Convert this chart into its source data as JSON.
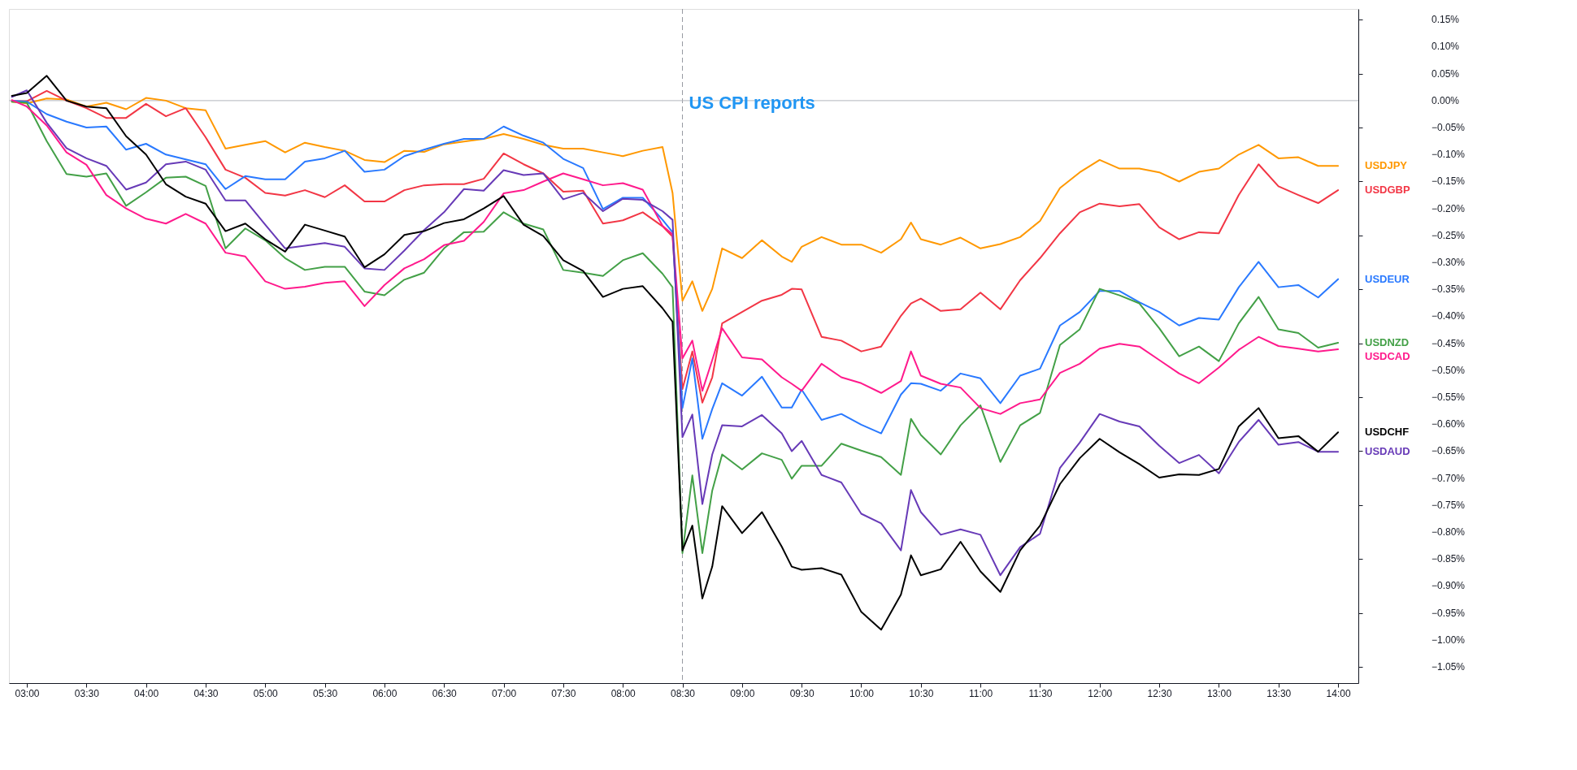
{
  "chart_data": {
    "type": "line",
    "x": [
      2.875,
      3,
      3.167,
      3.333,
      3.5,
      3.667,
      3.833,
      4,
      4.167,
      4.333,
      4.5,
      4.667,
      4.833,
      5,
      5.167,
      5.333,
      5.5,
      5.667,
      5.833,
      6,
      6.167,
      6.333,
      6.5,
      6.667,
      6.833,
      7,
      7.167,
      7.333,
      7.5,
      7.667,
      7.833,
      8,
      8.167,
      8.333,
      8.417,
      8.5,
      8.583,
      8.667,
      8.75,
      8.833,
      9,
      9.167,
      9.333,
      9.417,
      9.5,
      9.667,
      9.833,
      10,
      10.167,
      10.333,
      10.417,
      10.5,
      10.667,
      10.833,
      11,
      11.167,
      11.333,
      11.5,
      11.667,
      11.833,
      12,
      12.167,
      12.333,
      12.5,
      12.667,
      12.833,
      13,
      13.167,
      13.333,
      13.5,
      13.667,
      13.833,
      14
    ],
    "series": [
      {
        "name": "USDJPY",
        "color": "#ff9800",
        "values": [
          -0.002,
          -0.005,
          0.004,
          0.002,
          -0.011,
          -0.004,
          -0.016,
          0.005,
          0,
          -0.014,
          -0.018,
          -0.089,
          -0.082,
          -0.075,
          -0.096,
          -0.078,
          -0.086,
          -0.093,
          -0.11,
          -0.114,
          -0.093,
          -0.095,
          -0.081,
          -0.076,
          -0.071,
          -0.062,
          -0.071,
          -0.082,
          -0.089,
          -0.089,
          -0.096,
          -0.103,
          -0.093,
          -0.086,
          -0.171,
          -0.371,
          -0.335,
          -0.39,
          -0.349,
          -0.274,
          -0.292,
          -0.259,
          -0.289,
          -0.299,
          -0.271,
          -0.253,
          -0.267,
          -0.267,
          -0.282,
          -0.257,
          -0.226,
          -0.257,
          -0.267,
          -0.254,
          -0.274,
          -0.266,
          -0.253,
          -0.223,
          -0.162,
          -0.133,
          -0.11,
          -0.126,
          -0.126,
          -0.133,
          -0.15,
          -0.132,
          -0.126,
          -0.1,
          -0.082,
          -0.107,
          -0.105,
          -0.121,
          -0.121
        ]
      },
      {
        "name": "USDGBP",
        "color": "#f23645",
        "values": [
          -0.001,
          -0.001,
          0.018,
          0,
          -0.014,
          -0.032,
          -0.032,
          -0.006,
          -0.029,
          -0.014,
          -0.068,
          -0.128,
          -0.143,
          -0.171,
          -0.176,
          -0.166,
          -0.179,
          -0.157,
          -0.187,
          -0.187,
          -0.166,
          -0.157,
          -0.155,
          -0.155,
          -0.145,
          -0.098,
          -0.118,
          -0.135,
          -0.169,
          -0.167,
          -0.228,
          -0.222,
          -0.207,
          -0.233,
          -0.252,
          -0.535,
          -0.465,
          -0.56,
          -0.513,
          -0.413,
          -0.392,
          -0.371,
          -0.36,
          -0.349,
          -0.35,
          -0.438,
          -0.445,
          -0.465,
          -0.456,
          -0.399,
          -0.376,
          -0.367,
          -0.39,
          -0.387,
          -0.356,
          -0.387,
          -0.333,
          -0.292,
          -0.246,
          -0.207,
          -0.191,
          -0.196,
          -0.192,
          -0.235,
          -0.257,
          -0.244,
          -0.246,
          -0.175,
          -0.118,
          -0.159,
          -0.175,
          -0.19,
          -0.166
        ]
      },
      {
        "name": "USDEUR",
        "color": "#2979ff",
        "values": [
          0,
          -0.002,
          -0.025,
          -0.039,
          -0.05,
          -0.048,
          -0.091,
          -0.08,
          -0.1,
          -0.109,
          -0.118,
          -0.164,
          -0.14,
          -0.146,
          -0.146,
          -0.113,
          -0.107,
          -0.093,
          -0.132,
          -0.128,
          -0.103,
          -0.091,
          -0.08,
          -0.071,
          -0.071,
          -0.048,
          -0.065,
          -0.078,
          -0.108,
          -0.125,
          -0.201,
          -0.18,
          -0.18,
          -0.221,
          -0.244,
          -0.57,
          -0.478,
          -0.627,
          -0.572,
          -0.524,
          -0.547,
          -0.512,
          -0.569,
          -0.569,
          -0.536,
          -0.592,
          -0.581,
          -0.601,
          -0.617,
          -0.545,
          -0.524,
          -0.525,
          -0.538,
          -0.506,
          -0.515,
          -0.561,
          -0.51,
          -0.497,
          -0.417,
          -0.392,
          -0.353,
          -0.353,
          -0.374,
          -0.392,
          -0.417,
          -0.403,
          -0.406,
          -0.346,
          -0.299,
          -0.346,
          -0.342,
          -0.365,
          -0.331
        ]
      },
      {
        "name": "USDNZD",
        "color": "#43a047",
        "values": [
          -0.002,
          -0.004,
          -0.075,
          -0.136,
          -0.141,
          -0.135,
          -0.195,
          -0.17,
          -0.143,
          -0.141,
          -0.158,
          -0.274,
          -0.237,
          -0.259,
          -0.292,
          -0.314,
          -0.308,
          -0.308,
          -0.354,
          -0.361,
          -0.332,
          -0.319,
          -0.274,
          -0.244,
          -0.243,
          -0.207,
          -0.228,
          -0.239,
          -0.314,
          -0.319,
          -0.325,
          -0.296,
          -0.283,
          -0.321,
          -0.346,
          -0.839,
          -0.695,
          -0.839,
          -0.723,
          -0.656,
          -0.684,
          -0.654,
          -0.666,
          -0.701,
          -0.677,
          -0.677,
          -0.636,
          -0.649,
          -0.661,
          -0.694,
          -0.59,
          -0.62,
          -0.656,
          -0.602,
          -0.565,
          -0.67,
          -0.602,
          -0.579,
          -0.453,
          -0.424,
          -0.349,
          -0.361,
          -0.376,
          -0.422,
          -0.474,
          -0.456,
          -0.483,
          -0.413,
          -0.364,
          -0.424,
          -0.431,
          -0.458,
          -0.449
        ]
      },
      {
        "name": "USDCAD",
        "color": "#ff1a8c",
        "values": [
          0.001,
          -0.011,
          -0.046,
          -0.096,
          -0.119,
          -0.175,
          -0.2,
          -0.219,
          -0.228,
          -0.21,
          -0.228,
          -0.282,
          -0.289,
          -0.335,
          -0.349,
          -0.345,
          -0.338,
          -0.335,
          -0.381,
          -0.342,
          -0.311,
          -0.294,
          -0.268,
          -0.26,
          -0.225,
          -0.172,
          -0.166,
          -0.15,
          -0.135,
          -0.146,
          -0.157,
          -0.153,
          -0.165,
          -0.232,
          -0.248,
          -0.478,
          -0.445,
          -0.538,
          -0.481,
          -0.422,
          -0.476,
          -0.48,
          -0.513,
          -0.525,
          -0.538,
          -0.488,
          -0.513,
          -0.524,
          -0.542,
          -0.52,
          -0.465,
          -0.51,
          -0.525,
          -0.532,
          -0.57,
          -0.581,
          -0.561,
          -0.554,
          -0.505,
          -0.488,
          -0.46,
          -0.451,
          -0.456,
          -0.481,
          -0.506,
          -0.524,
          -0.495,
          -0.462,
          -0.438,
          -0.455,
          -0.46,
          -0.465,
          -0.461
        ]
      },
      {
        "name": "USDAUD",
        "color": "#673ab7",
        "values": [
          0.007,
          0.019,
          -0.041,
          -0.088,
          -0.107,
          -0.121,
          -0.165,
          -0.152,
          -0.118,
          -0.113,
          -0.128,
          -0.185,
          -0.185,
          -0.23,
          -0.274,
          -0.269,
          -0.264,
          -0.271,
          -0.311,
          -0.314,
          -0.278,
          -0.24,
          -0.207,
          -0.164,
          -0.167,
          -0.129,
          -0.138,
          -0.135,
          -0.183,
          -0.171,
          -0.205,
          -0.182,
          -0.184,
          -0.205,
          -0.221,
          -0.624,
          -0.582,
          -0.748,
          -0.656,
          -0.602,
          -0.604,
          -0.583,
          -0.617,
          -0.65,
          -0.631,
          -0.694,
          -0.708,
          -0.766,
          -0.784,
          -0.834,
          -0.722,
          -0.763,
          -0.805,
          -0.795,
          -0.805,
          -0.88,
          -0.828,
          -0.803,
          -0.681,
          -0.634,
          -0.581,
          -0.595,
          -0.604,
          -0.64,
          -0.672,
          -0.657,
          -0.691,
          -0.633,
          -0.592,
          -0.638,
          -0.633,
          -0.651,
          -0.651
        ]
      },
      {
        "name": "USDCHF",
        "color": "#000000",
        "values": [
          0.009,
          0.014,
          0.046,
          0,
          -0.011,
          -0.014,
          -0.066,
          -0.1,
          -0.155,
          -0.178,
          -0.191,
          -0.242,
          -0.228,
          -0.257,
          -0.28,
          -0.23,
          -0.241,
          -0.252,
          -0.309,
          -0.285,
          -0.249,
          -0.242,
          -0.227,
          -0.22,
          -0.2,
          -0.177,
          -0.23,
          -0.251,
          -0.296,
          -0.316,
          -0.364,
          -0.349,
          -0.344,
          -0.385,
          -0.41,
          -0.834,
          -0.788,
          -0.923,
          -0.864,
          -0.752,
          -0.802,
          -0.763,
          -0.827,
          -0.864,
          -0.87,
          -0.867,
          -0.879,
          -0.948,
          -0.981,
          -0.916,
          -0.843,
          -0.88,
          -0.869,
          -0.818,
          -0.873,
          -0.911,
          -0.834,
          -0.788,
          -0.711,
          -0.663,
          -0.627,
          -0.652,
          -0.674,
          -0.699,
          -0.693,
          -0.694,
          -0.683,
          -0.604,
          -0.57,
          -0.626,
          -0.622,
          -0.651,
          -0.615
        ]
      }
    ],
    "xlim": [
      2.85,
      14.17
    ],
    "xticks": [
      {
        "value": 3,
        "label": "03:00"
      },
      {
        "value": 3.5,
        "label": "03:30"
      },
      {
        "value": 4,
        "label": "04:00"
      },
      {
        "value": 4.5,
        "label": "04:30"
      },
      {
        "value": 5,
        "label": "05:00"
      },
      {
        "value": 5.5,
        "label": "05:30"
      },
      {
        "value": 6,
        "label": "06:00"
      },
      {
        "value": 6.5,
        "label": "06:30"
      },
      {
        "value": 7,
        "label": "07:00"
      },
      {
        "value": 7.5,
        "label": "07:30"
      },
      {
        "value": 8,
        "label": "08:00"
      },
      {
        "value": 8.5,
        "label": "08:30"
      },
      {
        "value": 9,
        "label": "09:00"
      },
      {
        "value": 9.5,
        "label": "09:30"
      },
      {
        "value": 10,
        "label": "10:00"
      },
      {
        "value": 10.5,
        "label": "10:30"
      },
      {
        "value": 11,
        "label": "11:00"
      },
      {
        "value": 11.5,
        "label": "11:30"
      },
      {
        "value": 12,
        "label": "12:00"
      },
      {
        "value": 12.5,
        "label": "12:30"
      },
      {
        "value": 13,
        "label": "13:00"
      },
      {
        "value": 13.5,
        "label": "13:30"
      },
      {
        "value": 14,
        "label": "14:00"
      }
    ],
    "ylim": [
      -1.08,
      0.17
    ],
    "yticks": [
      {
        "value": 0.15,
        "label": "0.15%"
      },
      {
        "value": 0.1,
        "label": "0.10%"
      },
      {
        "value": 0.05,
        "label": "0.05%"
      },
      {
        "value": 0,
        "label": "0.00%"
      },
      {
        "value": -0.05,
        "label": "−0.05%"
      },
      {
        "value": -0.1,
        "label": "−0.10%"
      },
      {
        "value": -0.15,
        "label": "−0.15%"
      },
      {
        "value": -0.2,
        "label": "−0.20%"
      },
      {
        "value": -0.25,
        "label": "−0.25%"
      },
      {
        "value": -0.3,
        "label": "−0.30%"
      },
      {
        "value": -0.35,
        "label": "−0.35%"
      },
      {
        "value": -0.4,
        "label": "−0.40%"
      },
      {
        "value": -0.45,
        "label": "−0.45%"
      },
      {
        "value": -0.5,
        "label": "−0.50%"
      },
      {
        "value": -0.55,
        "label": "−0.55%"
      },
      {
        "value": -0.6,
        "label": "−0.60%"
      },
      {
        "value": -0.65,
        "label": "−0.65%"
      },
      {
        "value": -0.7,
        "label": "−0.70%"
      },
      {
        "value": -0.75,
        "label": "−0.75%"
      },
      {
        "value": -0.8,
        "label": "−0.80%"
      },
      {
        "value": -0.85,
        "label": "−0.85%"
      },
      {
        "value": -0.9,
        "label": "−0.90%"
      },
      {
        "value": -0.95,
        "label": "−0.95%"
      },
      {
        "value": -1,
        "label": "−1.00%"
      },
      {
        "value": -1.05,
        "label": "−1.05%"
      }
    ],
    "ref_lines": [
      {
        "axis": "y",
        "value": 0,
        "color": "#b2b5be",
        "line_style": "solid"
      },
      {
        "axis": "x",
        "value": 8.5,
        "color": "#9598a1",
        "line_style": "dashed",
        "label": "US CPI reports"
      }
    ],
    "grid": false,
    "legend": false,
    "marker": "none",
    "line_style": "solid"
  }
}
